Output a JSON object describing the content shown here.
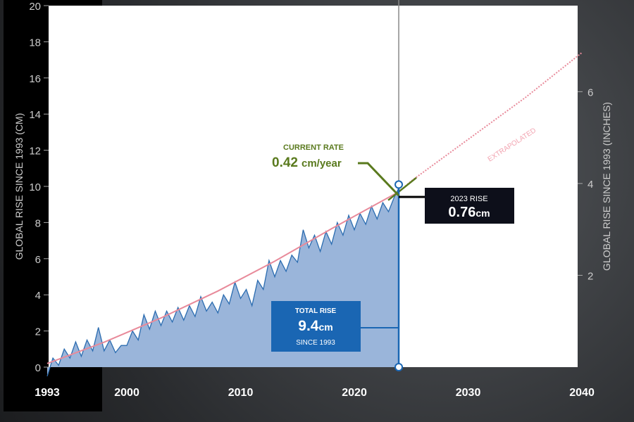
{
  "chart_data": {
    "type": "area",
    "ylabel": "GLOBAL RISE SINCE 1993 (CM)",
    "ylabel_right": "GLOBAL RISE SINCE 1993 (INCHES)",
    "xlim": [
      1993,
      2040
    ],
    "ylim": [
      0,
      20
    ],
    "x_ticks": [
      1993,
      2000,
      2010,
      2020,
      2030,
      2040
    ],
    "y_ticks": [
      0,
      2,
      4,
      6,
      8,
      10,
      12,
      14,
      16,
      18,
      20
    ],
    "y_right_ticks": [
      2,
      4,
      6
    ],
    "colors": {
      "area": "#9ab5da",
      "line": "#2b6cb0",
      "trend": "#e88a9a",
      "rate": "#5a7a1e",
      "box_blue": "#1a66b3",
      "box_black": "#0d0f1a"
    },
    "series": [
      {
        "name": "observed",
        "points": [
          [
            1993.0,
            -0.5
          ],
          [
            1993.5,
            0.5
          ],
          [
            1994,
            0.1
          ],
          [
            1994.5,
            1.0
          ],
          [
            1995,
            0.5
          ],
          [
            1995.5,
            1.4
          ],
          [
            1996,
            0.6
          ],
          [
            1996.5,
            1.5
          ],
          [
            1997,
            0.9
          ],
          [
            1997.5,
            2.2
          ],
          [
            1998,
            0.9
          ],
          [
            1998.5,
            1.5
          ],
          [
            1999,
            0.8
          ],
          [
            1999.5,
            1.2
          ],
          [
            2000,
            1.2
          ],
          [
            2000.5,
            2.0
          ],
          [
            2001,
            1.5
          ],
          [
            2001.5,
            2.9
          ],
          [
            2002,
            2.1
          ],
          [
            2002.5,
            3.1
          ],
          [
            2003,
            2.3
          ],
          [
            2003.5,
            3.1
          ],
          [
            2004,
            2.5
          ],
          [
            2004.5,
            3.3
          ],
          [
            2005,
            2.6
          ],
          [
            2005.5,
            3.4
          ],
          [
            2006,
            2.8
          ],
          [
            2006.5,
            3.9
          ],
          [
            2007,
            3.1
          ],
          [
            2007.5,
            3.6
          ],
          [
            2008,
            3.0
          ],
          [
            2008.5,
            4.0
          ],
          [
            2009,
            3.5
          ],
          [
            2009.5,
            4.7
          ],
          [
            2010,
            3.8
          ],
          [
            2010.5,
            4.3
          ],
          [
            2011,
            3.4
          ],
          [
            2011.5,
            4.8
          ],
          [
            2012,
            4.3
          ],
          [
            2012.5,
            5.9
          ],
          [
            2013,
            5.0
          ],
          [
            2013.5,
            5.9
          ],
          [
            2014,
            5.3
          ],
          [
            2014.5,
            6.2
          ],
          [
            2015,
            5.8
          ],
          [
            2015.5,
            7.6
          ],
          [
            2016,
            6.6
          ],
          [
            2016.5,
            7.3
          ],
          [
            2017,
            6.4
          ],
          [
            2017.5,
            7.5
          ],
          [
            2018,
            6.8
          ],
          [
            2018.5,
            8.0
          ],
          [
            2019,
            7.3
          ],
          [
            2019.5,
            8.4
          ],
          [
            2020,
            7.6
          ],
          [
            2020.5,
            8.5
          ],
          [
            2021,
            7.9
          ],
          [
            2021.5,
            8.9
          ],
          [
            2022,
            8.2
          ],
          [
            2022.5,
            9.1
          ],
          [
            2023,
            8.6
          ],
          [
            2023.5,
            9.4
          ],
          [
            2023.9,
            9.9
          ]
        ]
      },
      {
        "name": "trend",
        "points": [
          [
            1993,
            0.2
          ],
          [
            1998,
            1.38
          ],
          [
            2003,
            2.72
          ],
          [
            2008,
            4.21
          ],
          [
            2013,
            5.86
          ],
          [
            2018,
            7.66
          ],
          [
            2023.9,
            9.7
          ]
        ]
      },
      {
        "name": "extrapolated",
        "points": [
          [
            2023.9,
            9.7
          ],
          [
            2025,
            10.3
          ],
          [
            2030,
            12.6
          ],
          [
            2035,
            14.9
          ],
          [
            2040,
            17.4
          ]
        ]
      }
    ],
    "current_year": 2023.9,
    "annotations": {
      "extrapolated": "EXTRAPOLATED",
      "rate_title": "CURRENT RATE",
      "rate_value": "0.42",
      "rate_unit": "cm/year",
      "rise_title": "2023 RISE",
      "rise_value": "0.76",
      "rise_unit": "cm",
      "total_title": "TOTAL RISE",
      "total_value": "9.4",
      "total_unit": "cm",
      "total_sub": "SINCE 1993"
    }
  }
}
